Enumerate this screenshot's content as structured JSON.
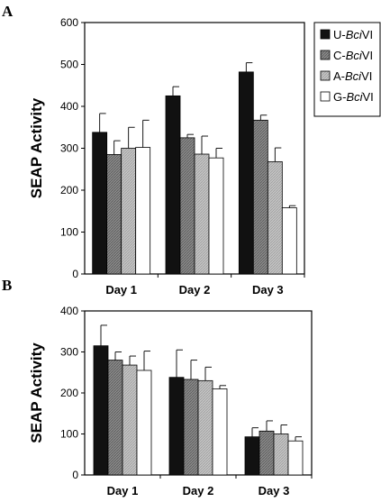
{
  "chart_data": [
    {
      "type": "bar",
      "panel_label": "A",
      "ylabel": "SEAP Activity",
      "xlabel": "",
      "ylim": [
        0,
        600
      ],
      "yticks": [
        0,
        100,
        200,
        300,
        400,
        500,
        600
      ],
      "categories": [
        "Day 1",
        "Day 2",
        "Day 3"
      ],
      "series": [
        {
          "name": "U-BciVI",
          "values": [
            338,
            425,
            482
          ],
          "errors": [
            45,
            22,
            22
          ]
        },
        {
          "name": "C-BciVI",
          "values": [
            285,
            325,
            367
          ],
          "errors": [
            33,
            8,
            12
          ]
        },
        {
          "name": "A-BciVI",
          "values": [
            300,
            286,
            268
          ],
          "errors": [
            50,
            43,
            33
          ]
        },
        {
          "name": "G-BciVI",
          "values": [
            302,
            277,
            158
          ],
          "errors": [
            65,
            23,
            5
          ]
        }
      ],
      "legend": {
        "placement": "right",
        "entries": [
          {
            "prefix": "U-",
            "italic": "Bci",
            "suffix": "VI"
          },
          {
            "prefix": "C-",
            "italic": "Bci",
            "suffix": "VI"
          },
          {
            "prefix": "A-",
            "italic": "Bci",
            "suffix": "VI"
          },
          {
            "prefix": "G-",
            "italic": "Bci",
            "suffix": "VI"
          }
        ]
      },
      "grid": false
    },
    {
      "type": "bar",
      "panel_label": "B",
      "ylabel": "SEAP Activity",
      "xlabel": "",
      "ylim": [
        0,
        400
      ],
      "yticks": [
        0,
        100,
        200,
        300,
        400
      ],
      "categories": [
        "Day 1",
        "Day 2",
        "Day 3"
      ],
      "series": [
        {
          "name": "U-BciVI",
          "values": [
            315,
            238,
            93
          ],
          "errors": [
            50,
            67,
            22
          ]
        },
        {
          "name": "C-BciVI",
          "values": [
            280,
            233,
            107
          ],
          "errors": [
            20,
            47,
            25
          ]
        },
        {
          "name": "A-BciVI",
          "values": [
            268,
            230,
            100
          ],
          "errors": [
            22,
            33,
            22
          ]
        },
        {
          "name": "G-BciVI",
          "values": [
            255,
            210,
            83
          ],
          "errors": [
            47,
            8,
            10
          ]
        }
      ],
      "grid": false
    }
  ],
  "colors": {
    "U-BciVI": "#111111",
    "C-BciVI": "#8a8a8a",
    "A-BciVI": "#c4c4c4",
    "G-BciVI": "#ffffff"
  }
}
